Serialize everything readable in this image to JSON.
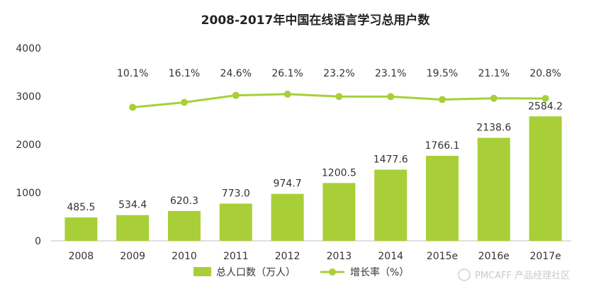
{
  "chart_data": {
    "type": "bar",
    "title": "2008-2017年中国在线语言学习总用户数",
    "categories": [
      "2008",
      "2009",
      "2010",
      "2011",
      "2012",
      "2013",
      "2014",
      "2015e",
      "2016e",
      "2017e"
    ],
    "ylim": [
      0,
      4000
    ],
    "yticks": [
      "0",
      "1000",
      "2000",
      "3000",
      "4000"
    ],
    "grid": false,
    "legend_position": "bottom",
    "series": [
      {
        "name": "总人口数（万人）",
        "type": "bar",
        "color": "#a8cf38",
        "values": [
          485.5,
          534.4,
          620.3,
          773.0,
          974.7,
          1200.5,
          1477.6,
          1766.1,
          2138.6,
          2584.2
        ],
        "labels": [
          "485.5",
          "534.4",
          "620.3",
          "773.0",
          "974.7",
          "1200.5",
          "1477.6",
          "1766.1",
          "2138.6",
          "2584.2"
        ]
      },
      {
        "name": "增长率（%）",
        "type": "line",
        "color": "#a8cf38",
        "values": [
          null,
          10.1,
          16.1,
          24.6,
          26.1,
          23.2,
          23.1,
          19.5,
          21.1,
          20.8
        ],
        "labels": [
          "",
          "10.1%",
          "16.1%",
          "24.6%",
          "26.1%",
          "23.2%",
          "23.1%",
          "19.5%",
          "21.1%",
          "20.8%"
        ]
      }
    ]
  },
  "watermark": "PMCAFF 产品经理社区"
}
